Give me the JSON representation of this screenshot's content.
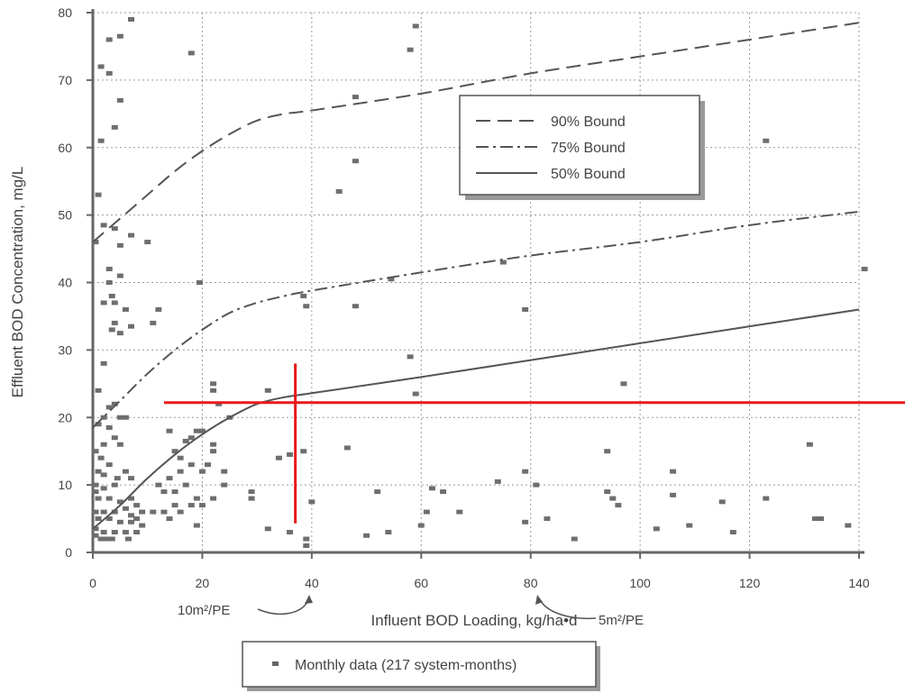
{
  "chart_data": {
    "type": "scatter",
    "xlabel": "Influent BOD Loading, kg/ha•d",
    "ylabel": "Effluent BOD Concentration, mg/L",
    "xlim": [
      0,
      140
    ],
    "ylim": [
      0,
      80
    ],
    "x_ticks": [
      0,
      20,
      40,
      60,
      80,
      100,
      120,
      140
    ],
    "y_ticks": [
      0,
      10,
      20,
      30,
      40,
      50,
      60,
      70,
      80
    ],
    "x_tick_labels": [
      "0",
      "20",
      "40",
      "60",
      "80",
      "100",
      "120",
      "140"
    ],
    "y_tick_labels": [
      "0",
      "10",
      "20",
      "30",
      "40",
      "50",
      "60",
      "70",
      "80"
    ],
    "grid": true,
    "lines": [
      {
        "name": "90% Bound",
        "style": "long-dash",
        "x": [
          0,
          5,
          10,
          15,
          20,
          25,
          30,
          35,
          40,
          60,
          80,
          100,
          120,
          140
        ],
        "y": [
          46,
          49.5,
          53,
          56.5,
          59.5,
          62,
          64,
          65,
          65.5,
          68,
          71,
          73.5,
          76,
          78.5
        ]
      },
      {
        "name": "75% Bound",
        "style": "dash-dot",
        "x": [
          0,
          5,
          10,
          15,
          20,
          25,
          30,
          35,
          40,
          60,
          80,
          100,
          120,
          140
        ],
        "y": [
          18.5,
          22.5,
          26.5,
          30,
          33,
          35.5,
          37,
          38,
          38.8,
          41.5,
          44,
          46,
          48.5,
          50.5
        ]
      },
      {
        "name": "50% Bound",
        "style": "solid",
        "x": [
          0,
          5,
          10,
          15,
          20,
          25,
          30,
          35,
          40,
          60,
          80,
          100,
          120,
          140
        ],
        "y": [
          3.5,
          7,
          11,
          14.5,
          17.5,
          20,
          22,
          23,
          23.6,
          26,
          28.5,
          31,
          33.5,
          36
        ]
      }
    ],
    "points_series": {
      "name": "Monthly data (217 system-months)",
      "points": [
        [
          1.5,
          72
        ],
        [
          3,
          76
        ],
        [
          5,
          76.5
        ],
        [
          7,
          79
        ],
        [
          3,
          71
        ],
        [
          5,
          67
        ],
        [
          4,
          63
        ],
        [
          1.5,
          61
        ],
        [
          18,
          74
        ],
        [
          1,
          53
        ],
        [
          2,
          48.5
        ],
        [
          4,
          48
        ],
        [
          5,
          45.5
        ],
        [
          7,
          47
        ],
        [
          10,
          46
        ],
        [
          0.5,
          46
        ],
        [
          3,
          42
        ],
        [
          5,
          41
        ],
        [
          3,
          40
        ],
        [
          3.5,
          38
        ],
        [
          2,
          37
        ],
        [
          4,
          37
        ],
        [
          6,
          36
        ],
        [
          12,
          36
        ],
        [
          4,
          34
        ],
        [
          3.5,
          33
        ],
        [
          5,
          32.5
        ],
        [
          7,
          33.5
        ],
        [
          11,
          34
        ],
        [
          19.5,
          40
        ],
        [
          2,
          28
        ],
        [
          1,
          24
        ],
        [
          3,
          21.5
        ],
        [
          4,
          22
        ],
        [
          2,
          20
        ],
        [
          5,
          20
        ],
        [
          6,
          20
        ],
        [
          1,
          19
        ],
        [
          3,
          18.5
        ],
        [
          4,
          17
        ],
        [
          5,
          16
        ],
        [
          2,
          16
        ],
        [
          0.5,
          15
        ],
        [
          1.5,
          14
        ],
        [
          3,
          13
        ],
        [
          1,
          12
        ],
        [
          2,
          11.5
        ],
        [
          4.5,
          11
        ],
        [
          6,
          12
        ],
        [
          7,
          11
        ],
        [
          0.5,
          10
        ],
        [
          2,
          9.5
        ],
        [
          4,
          10
        ],
        [
          0.5,
          9
        ],
        [
          1,
          8
        ],
        [
          3,
          8
        ],
        [
          5,
          7.5
        ],
        [
          7,
          8
        ],
        [
          8,
          7
        ],
        [
          0.5,
          6
        ],
        [
          2,
          6
        ],
        [
          4,
          6
        ],
        [
          6,
          6.5
        ],
        [
          7,
          5.5
        ],
        [
          9,
          6
        ],
        [
          11,
          6
        ],
        [
          1,
          5
        ],
        [
          3,
          5
        ],
        [
          5,
          4.5
        ],
        [
          7,
          4.5
        ],
        [
          8,
          5
        ],
        [
          9,
          4
        ],
        [
          0.5,
          3.5
        ],
        [
          2,
          3
        ],
        [
          4,
          3
        ],
        [
          6,
          3
        ],
        [
          8,
          3
        ],
        [
          0.5,
          2.5
        ],
        [
          1.5,
          2
        ],
        [
          2.5,
          2
        ],
        [
          3.5,
          2
        ],
        [
          6.5,
          2
        ],
        [
          14,
          18
        ],
        [
          15,
          15
        ],
        [
          17,
          16.5
        ],
        [
          18,
          17
        ],
        [
          19,
          18
        ],
        [
          20,
          18
        ],
        [
          16,
          14
        ],
        [
          18,
          13
        ],
        [
          20,
          12
        ],
        [
          16,
          12
        ],
        [
          14,
          11
        ],
        [
          12,
          10
        ],
        [
          13,
          9
        ],
        [
          15,
          9
        ],
        [
          17,
          10
        ],
        [
          19,
          8
        ],
        [
          21,
          13
        ],
        [
          22,
          15
        ],
        [
          18,
          7
        ],
        [
          20,
          7
        ],
        [
          22,
          16
        ],
        [
          24,
          12
        ],
        [
          24,
          10
        ],
        [
          22,
          8
        ],
        [
          19,
          4
        ],
        [
          13,
          6
        ],
        [
          15,
          7
        ],
        [
          16,
          6
        ],
        [
          14,
          5
        ],
        [
          22,
          25
        ],
        [
          22,
          24
        ],
        [
          23,
          22
        ],
        [
          25,
          20
        ],
        [
          29,
          9
        ],
        [
          29,
          8
        ],
        [
          32,
          24
        ],
        [
          32,
          3.5
        ],
        [
          34,
          14
        ],
        [
          36,
          14.5
        ],
        [
          36,
          3
        ],
        [
          38.5,
          38
        ],
        [
          39,
          36.5
        ],
        [
          38.5,
          15
        ],
        [
          39,
          2
        ],
        [
          39,
          1
        ],
        [
          40,
          7.5
        ],
        [
          45,
          53.5
        ],
        [
          46.5,
          15.5
        ],
        [
          48,
          67.5
        ],
        [
          48,
          58
        ],
        [
          48,
          36.5
        ],
        [
          50,
          2.5
        ],
        [
          52,
          9
        ],
        [
          54,
          3
        ],
        [
          54.5,
          40.5
        ],
        [
          58,
          29
        ],
        [
          58,
          74.5
        ],
        [
          59,
          78
        ],
        [
          59,
          23.5
        ],
        [
          60,
          4
        ],
        [
          61,
          6
        ],
        [
          62,
          9.5
        ],
        [
          64,
          9
        ],
        [
          67,
          6
        ],
        [
          74,
          10.5
        ],
        [
          75,
          43
        ],
        [
          79,
          36
        ],
        [
          79,
          12
        ],
        [
          79,
          4.5
        ],
        [
          81,
          10
        ],
        [
          83,
          5
        ],
        [
          88,
          2
        ],
        [
          94,
          15
        ],
        [
          94,
          9
        ],
        [
          95,
          8
        ],
        [
          96,
          7
        ],
        [
          97,
          25
        ],
        [
          103,
          3.5
        ],
        [
          106,
          12
        ],
        [
          106,
          8.5
        ],
        [
          109,
          4
        ],
        [
          115,
          7.5
        ],
        [
          117,
          3
        ],
        [
          123,
          61
        ],
        [
          123,
          8
        ],
        [
          131,
          16
        ],
        [
          132,
          5
        ],
        [
          133,
          5
        ],
        [
          138,
          4
        ],
        [
          141,
          42
        ]
      ]
    },
    "legend": {
      "placement": "upper-center-right",
      "entries": [
        "90% Bound",
        "75% Bound",
        "50% Bound"
      ]
    },
    "marker_legend": {
      "placement": "bottom",
      "text": "Monthly data (217 system-months)"
    },
    "annotations": [
      {
        "text": "10m²/PE",
        "points_to_x": 40
      },
      {
        "text": "5m²/PE",
        "points_to_x": 80
      }
    ],
    "highlight": {
      "color": "#e8191c",
      "horizontal_y": 22.2,
      "vertical_x": 37,
      "vertical_y_range": [
        4.3,
        28
      ]
    }
  }
}
